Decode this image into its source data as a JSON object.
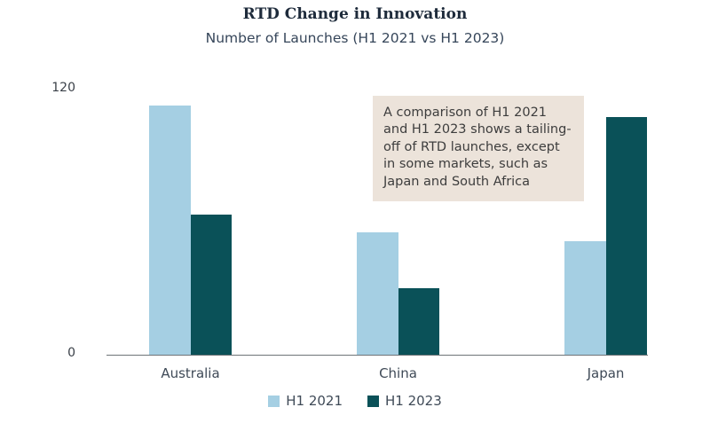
{
  "chart_data": {
    "type": "bar",
    "title": "RTD Change in Innovation",
    "subtitle": "Number of Launches (H1 2021 vs H1 2023)",
    "categories": [
      "Australia",
      "China",
      "Japan"
    ],
    "series": [
      {
        "name": "H1 2021",
        "color": "#a5cfe3",
        "values": [
          112,
          55,
          51
        ]
      },
      {
        "name": "H1 2023",
        "color": "#0a5158",
        "values": [
          63,
          30,
          107
        ]
      }
    ],
    "xlabel": "",
    "ylabel": "",
    "ylim": [
      0,
      120
    ],
    "yticks": [
      "0",
      "120"
    ],
    "grid": false,
    "legend_position": "bottom-center"
  },
  "annotation": {
    "text": "A comparison of H1 2021 and H1 2023 shows a tailing-off of RTD launches, except in some markets, such as Japan and South Africa",
    "background": "#ece3da"
  },
  "colors": {
    "title_text": "#1e2b3b",
    "axis_line": "#6e7377",
    "label_text": "#3f4a57"
  }
}
